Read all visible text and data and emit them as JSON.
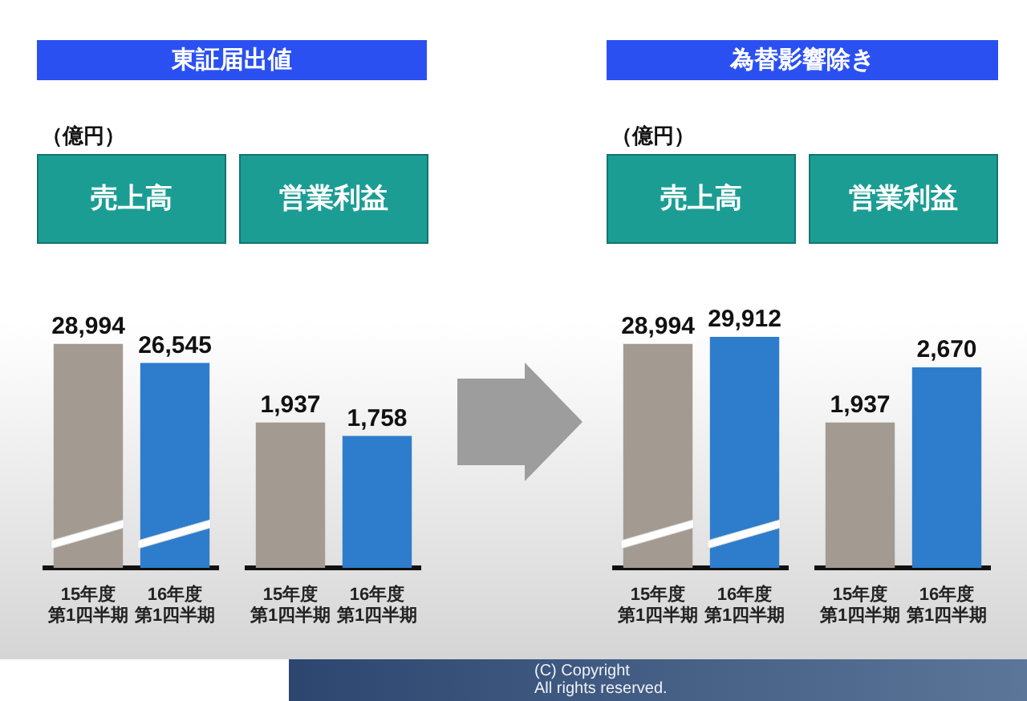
{
  "chart_data": [
    {
      "type": "bar",
      "title": "売上高",
      "annotations": [
        "東証届出値",
        "（億円）"
      ],
      "categories": [
        "15年度第1四半期",
        "16年度第1四半期"
      ],
      "values": [
        28994,
        26545
      ],
      "colors": [
        "#a39a91",
        "#2e7dcc"
      ],
      "value_labels": [
        "28,994",
        "26,545"
      ]
    },
    {
      "type": "bar",
      "title": "営業利益",
      "categories": [
        "15年度第1四半期",
        "16年度第1四半期"
      ],
      "values": [
        1937,
        1758
      ],
      "colors": [
        "#a39a91",
        "#2e7dcc"
      ],
      "value_labels": [
        "1,937",
        "1,758"
      ]
    },
    {
      "type": "bar",
      "title": "売上高",
      "annotations": [
        "為替影響除き",
        "（億円）"
      ],
      "categories": [
        "15年度第1四半期",
        "16年度第1四半期"
      ],
      "values": [
        28994,
        29912
      ],
      "colors": [
        "#a39a91",
        "#2e7dcc"
      ],
      "value_labels": [
        "28,994",
        "29,912"
      ]
    },
    {
      "type": "bar",
      "title": "営業利益",
      "annotations": [
        "(C) Copyright",
        "All rights reserved."
      ],
      "categories": [
        "15年度第1四半期",
        "16年度第1四半期"
      ],
      "values": [
        1937,
        2670
      ],
      "colors": [
        "#a39a91",
        "#2e7dcc"
      ],
      "value_labels": [
        "1,937",
        "2,670"
      ]
    }
  ]
}
